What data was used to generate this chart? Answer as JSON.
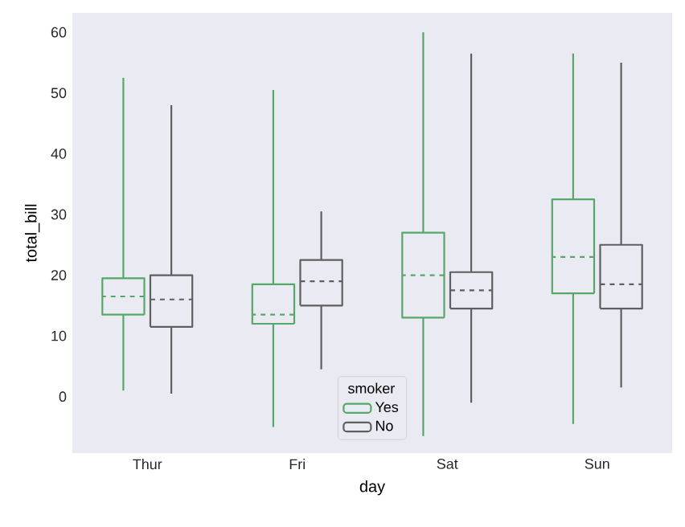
{
  "chart_data": {
    "type": "box",
    "xlabel": "day",
    "ylabel": "total_bill",
    "legend_title": "smoker",
    "legend": "bottom",
    "categories": [
      "Thur",
      "Fri",
      "Sat",
      "Sun"
    ],
    "ylim": [
      -9.3,
      63.2
    ],
    "yticks": [
      0,
      10,
      20,
      30,
      40,
      50,
      60
    ],
    "grid": false,
    "series": [
      {
        "name": "Yes",
        "color": "#55a868",
        "boxes": [
          {
            "low": 1,
            "q1": 13.5,
            "median": 16.5,
            "q3": 19.5,
            "high": 52.5
          },
          {
            "low": -5,
            "q1": 12,
            "median": 13.5,
            "q3": 18.5,
            "high": 50.5
          },
          {
            "low": -6.5,
            "q1": 13,
            "median": 20,
            "q3": 27,
            "high": 60
          },
          {
            "low": -4.5,
            "q1": 17,
            "median": 23,
            "q3": 32.5,
            "high": 56.5
          }
        ]
      },
      {
        "name": "No",
        "color": "#5f5f5f",
        "boxes": [
          {
            "low": 0.5,
            "q1": 11.5,
            "median": 16,
            "q3": 20,
            "high": 48
          },
          {
            "low": 4.5,
            "q1": 15,
            "median": 19,
            "q3": 22.5,
            "high": 30.5
          },
          {
            "low": -1,
            "q1": 14.5,
            "median": 17.5,
            "q3": 20.5,
            "high": 56.5
          },
          {
            "low": 1.5,
            "q1": 14.5,
            "median": 18.5,
            "q3": 25,
            "high": 55
          }
        ]
      }
    ]
  }
}
